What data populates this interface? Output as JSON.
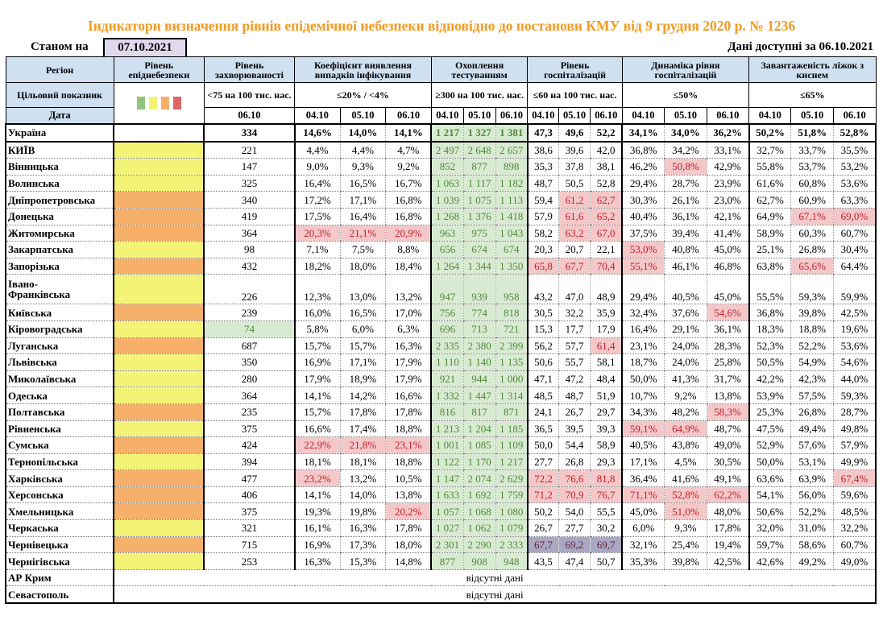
{
  "title": "Індикатори визначення рівнів епідемічної небезпеки відповідно до постанови КМУ від 9 грудня 2020 р. № 1236",
  "as_of_label": "Станом на",
  "as_of_date": "07.10.2021",
  "available_label": "Дані доступні за  06.10.2021",
  "headers": {
    "region": "Регіон",
    "level": "Рівень епіднебезпеки",
    "incidence": "Рівень захворюваності",
    "detection": "Коефіцієнт виявлення випадків інфікування",
    "testing": "Охоплення тестуванням",
    "hosp": "Рівень госпіталізацій",
    "hosp_dyn": "Динаміка рівня госпіталізацій",
    "oxygen": "Завантаженість ліжок з киснем"
  },
  "targets": {
    "label": "Цільовий показник",
    "incidence": "<75 на 100 тис. нас.",
    "detection": "≤20% / <4%",
    "testing": "≥300 на 100 тис. нас.",
    "hosp": "≤60 на 100 тис. нас.",
    "hosp_dyn": "≤50%",
    "oxygen": "≤65%"
  },
  "legend_colors": [
    "#93c47d",
    "#f3f376",
    "#f6b06a",
    "#e06666"
  ],
  "dates_label": "Дата",
  "incidence_date": "06.10",
  "dates": [
    "04.10",
    "05.10",
    "06.10"
  ],
  "no_data": "відсутні дані",
  "ukraine": {
    "name": "Україна",
    "incidence": "334",
    "detection": [
      "14,6%",
      "14,0%",
      "14,1%"
    ],
    "testing": [
      "1 217",
      "1 327",
      "1 381"
    ],
    "hosp": [
      "47,3",
      "49,6",
      "52,2"
    ],
    "hosp_dyn": [
      "34,1%",
      "34,0%",
      "36,2%"
    ],
    "oxygen": [
      "50,2%",
      "51,8%",
      "52,8%"
    ]
  },
  "rows": [
    {
      "name": "КИЇВ",
      "level": "yellow",
      "incidence": "221",
      "detection": [
        "4,4%",
        "4,4%",
        "4,7%"
      ],
      "testing": [
        "2 497",
        "2 648",
        "2 657"
      ],
      "hosp": [
        "38,6",
        "39,6",
        "42,0"
      ],
      "hosp_dyn": [
        "36,8%",
        "34,2%",
        "33,1%"
      ],
      "oxygen": [
        "32,7%",
        "33,7%",
        "35,5%"
      ]
    },
    {
      "name": "Вінницька",
      "level": "yellow",
      "incidence": "147",
      "detection": [
        "9,0%",
        "9,3%",
        "9,2%"
      ],
      "testing": [
        "852",
        "877",
        "898"
      ],
      "hosp": [
        "35,3",
        "37,8",
        "38,1"
      ],
      "hosp_dyn": [
        "46,2%",
        "50,8%",
        "42,9%"
      ],
      "oxygen": [
        "55,8%",
        "53,7%",
        "53,2%"
      ]
    },
    {
      "name": "Волинська",
      "level": "yellow",
      "incidence": "325",
      "detection": [
        "16,4%",
        "16,5%",
        "16,7%"
      ],
      "testing": [
        "1 063",
        "1 117",
        "1 182"
      ],
      "hosp": [
        "48,7",
        "50,5",
        "52,8"
      ],
      "hosp_dyn": [
        "29,4%",
        "28,7%",
        "23,9%"
      ],
      "oxygen": [
        "61,6%",
        "60,8%",
        "53,6%"
      ]
    },
    {
      "name": "Дніпропетровська",
      "level": "orange",
      "incidence": "340",
      "detection": [
        "17,2%",
        "17,1%",
        "16,8%"
      ],
      "testing": [
        "1 039",
        "1 075",
        "1 113"
      ],
      "hosp": [
        "59,4",
        "61,2",
        "62,7"
      ],
      "hosp_dyn": [
        "30,3%",
        "26,1%",
        "23,0%"
      ],
      "oxygen": [
        "62,7%",
        "60,9%",
        "63,3%"
      ]
    },
    {
      "name": "Донецька",
      "level": "orange",
      "incidence": "419",
      "detection": [
        "17,5%",
        "16,4%",
        "16,8%"
      ],
      "testing": [
        "1 268",
        "1 376",
        "1 418"
      ],
      "hosp": [
        "57,9",
        "61,6",
        "65,2"
      ],
      "hosp_dyn": [
        "40,4%",
        "36,1%",
        "42,1%"
      ],
      "oxygen": [
        "64,9%",
        "67,1%",
        "69,0%"
      ]
    },
    {
      "name": "Житомирська",
      "level": "orange",
      "incidence": "364",
      "detection": [
        "20,3%",
        "21,1%",
        "20,9%"
      ],
      "testing": [
        "963",
        "975",
        "1 043"
      ],
      "hosp": [
        "58,2",
        "63,2",
        "67,0"
      ],
      "hosp_dyn": [
        "37,5%",
        "39,4%",
        "41,4%"
      ],
      "oxygen": [
        "58,9%",
        "60,3%",
        "60,7%"
      ]
    },
    {
      "name": "Закарпатська",
      "level": "yellow",
      "incidence": "98",
      "detection": [
        "7,1%",
        "7,5%",
        "8,8%"
      ],
      "testing": [
        "656",
        "674",
        "674"
      ],
      "hosp": [
        "20,3",
        "20,7",
        "22,1"
      ],
      "hosp_dyn": [
        "53,0%",
        "40,8%",
        "45,0%"
      ],
      "oxygen": [
        "25,1%",
        "26,8%",
        "30,4%"
      ]
    },
    {
      "name": "Запорізька",
      "level": "orange",
      "incidence": "432",
      "detection": [
        "18,2%",
        "18,0%",
        "18,4%"
      ],
      "testing": [
        "1 264",
        "1 344",
        "1 350"
      ],
      "hosp": [
        "65,8",
        "67,7",
        "70,4"
      ],
      "hosp_dyn": [
        "55,1%",
        "46,1%",
        "46,8%"
      ],
      "oxygen": [
        "63,8%",
        "65,6%",
        "64,4%"
      ]
    },
    {
      "name": "Івано-Франківська",
      "level": "yellow",
      "incidence": "226",
      "detection": [
        "12,3%",
        "13,0%",
        "13,2%"
      ],
      "testing": [
        "947",
        "939",
        "958"
      ],
      "hosp": [
        "43,2",
        "47,0",
        "48,9"
      ],
      "hosp_dyn": [
        "29,4%",
        "40,5%",
        "45,0%"
      ],
      "oxygen": [
        "55,5%",
        "59,3%",
        "59,9%"
      ]
    },
    {
      "name": "Київська",
      "level": "orange",
      "incidence": "239",
      "detection": [
        "16,0%",
        "16,5%",
        "17,0%"
      ],
      "testing": [
        "756",
        "774",
        "818"
      ],
      "hosp": [
        "30,5",
        "32,2",
        "35,9"
      ],
      "hosp_dyn": [
        "32,4%",
        "37,6%",
        "54,6%"
      ],
      "oxygen": [
        "36,8%",
        "39,8%",
        "42,5%"
      ]
    },
    {
      "name": "Кіровоградська",
      "level": "yellow",
      "incidence": "74",
      "detection": [
        "5,8%",
        "6,0%",
        "6,3%"
      ],
      "testing": [
        "696",
        "713",
        "721"
      ],
      "hosp": [
        "15,3",
        "17,7",
        "17,9"
      ],
      "hosp_dyn": [
        "16,4%",
        "29,1%",
        "36,1%"
      ],
      "oxygen": [
        "18,3%",
        "18,8%",
        "19,6%"
      ]
    },
    {
      "name": "Луганська",
      "level": "orange",
      "incidence": "687",
      "detection": [
        "15,7%",
        "15,7%",
        "16,3%"
      ],
      "testing": [
        "2 335",
        "2 380",
        "2 399"
      ],
      "hosp": [
        "56,2",
        "57,7",
        "61,4"
      ],
      "hosp_dyn": [
        "23,1%",
        "24,0%",
        "28,3%"
      ],
      "oxygen": [
        "52,3%",
        "52,2%",
        "53,6%"
      ]
    },
    {
      "name": "Львівська",
      "level": "yellow",
      "incidence": "350",
      "detection": [
        "16,9%",
        "17,1%",
        "17,9%"
      ],
      "testing": [
        "1 110",
        "1 140",
        "1 135"
      ],
      "hosp": [
        "50,6",
        "55,7",
        "58,1"
      ],
      "hosp_dyn": [
        "18,7%",
        "24,0%",
        "25,8%"
      ],
      "oxygen": [
        "50,5%",
        "54,9%",
        "54,6%"
      ]
    },
    {
      "name": "Миколаївська",
      "level": "yellow",
      "incidence": "280",
      "detection": [
        "17,9%",
        "18,9%",
        "17,9%"
      ],
      "testing": [
        "921",
        "944",
        "1 000"
      ],
      "hosp": [
        "47,1",
        "47,2",
        "48,4"
      ],
      "hosp_dyn": [
        "50,0%",
        "41,3%",
        "31,7%"
      ],
      "oxygen": [
        "42,2%",
        "42,3%",
        "44,0%"
      ]
    },
    {
      "name": "Одеська",
      "level": "yellow",
      "incidence": "364",
      "detection": [
        "14,1%",
        "14,2%",
        "16,6%"
      ],
      "testing": [
        "1 332",
        "1 447",
        "1 314"
      ],
      "hosp": [
        "48,5",
        "48,7",
        "51,9"
      ],
      "hosp_dyn": [
        "10,7%",
        "9,2%",
        "13,8%"
      ],
      "oxygen": [
        "53,9%",
        "57,5%",
        "59,3%"
      ]
    },
    {
      "name": "Полтавська",
      "level": "orange",
      "incidence": "235",
      "detection": [
        "15,7%",
        "17,8%",
        "17,8%"
      ],
      "testing": [
        "816",
        "817",
        "871"
      ],
      "hosp": [
        "24,1",
        "26,7",
        "29,7"
      ],
      "hosp_dyn": [
        "34,3%",
        "48,2%",
        "58,3%"
      ],
      "oxygen": [
        "25,3%",
        "26,8%",
        "28,7%"
      ]
    },
    {
      "name": "Рівненська",
      "level": "yellow",
      "incidence": "375",
      "detection": [
        "16,6%",
        "17,4%",
        "18,8%"
      ],
      "testing": [
        "1 213",
        "1 204",
        "1 185"
      ],
      "hosp": [
        "36,5",
        "39,5",
        "39,3"
      ],
      "hosp_dyn": [
        "59,1%",
        "64,9%",
        "48,7%"
      ],
      "oxygen": [
        "47,5%",
        "49,4%",
        "49,8%"
      ]
    },
    {
      "name": "Сумська",
      "level": "orange",
      "incidence": "424",
      "detection": [
        "22,9%",
        "21,8%",
        "23,1%"
      ],
      "testing": [
        "1 001",
        "1 085",
        "1 109"
      ],
      "hosp": [
        "50,0",
        "54,4",
        "58,9"
      ],
      "hosp_dyn": [
        "40,5%",
        "43,8%",
        "49,0%"
      ],
      "oxygen": [
        "52,9%",
        "57,6%",
        "57,9%"
      ]
    },
    {
      "name": "Тернопільська",
      "level": "yellow",
      "incidence": "394",
      "detection": [
        "18,1%",
        "18,1%",
        "18,8%"
      ],
      "testing": [
        "1 122",
        "1 170",
        "1 217"
      ],
      "hosp": [
        "27,7",
        "26,8",
        "29,3"
      ],
      "hosp_dyn": [
        "17,1%",
        "4,5%",
        "30,5%"
      ],
      "oxygen": [
        "50,0%",
        "53,1%",
        "49,9%"
      ]
    },
    {
      "name": "Харківська",
      "level": "orange",
      "incidence": "477",
      "detection": [
        "23,2%",
        "13,2%",
        "10,5%"
      ],
      "testing": [
        "1 147",
        "2 074",
        "2 629"
      ],
      "hosp": [
        "72,2",
        "76,6",
        "81,8"
      ],
      "hosp_dyn": [
        "36,4%",
        "41,6%",
        "49,1%"
      ],
      "oxygen": [
        "63,6%",
        "63,9%",
        "67,4%"
      ]
    },
    {
      "name": "Херсонська",
      "level": "orange",
      "incidence": "406",
      "detection": [
        "14,1%",
        "14,0%",
        "13,8%"
      ],
      "testing": [
        "1 633",
        "1 692",
        "1 759"
      ],
      "hosp": [
        "71,2",
        "70,9",
        "76,7"
      ],
      "hosp_dyn": [
        "71,1%",
        "52,8%",
        "62,2%"
      ],
      "oxygen": [
        "54,1%",
        "56,0%",
        "59,6%"
      ]
    },
    {
      "name": "Хмельницька",
      "level": "orange",
      "incidence": "375",
      "detection": [
        "19,3%",
        "19,8%",
        "20,2%"
      ],
      "testing": [
        "1 057",
        "1 068",
        "1 080"
      ],
      "hosp": [
        "50,2",
        "54,0",
        "55,5"
      ],
      "hosp_dyn": [
        "45,0%",
        "51,0%",
        "48,0%"
      ],
      "oxygen": [
        "50,6%",
        "52,2%",
        "48,5%"
      ]
    },
    {
      "name": "Черкаська",
      "level": "yellow",
      "incidence": "321",
      "detection": [
        "16,1%",
        "16,3%",
        "17,8%"
      ],
      "testing": [
        "1 027",
        "1 062",
        "1 079"
      ],
      "hosp": [
        "26,7",
        "27,7",
        "30,2"
      ],
      "hosp_dyn": [
        "6,0%",
        "9,3%",
        "17,8%"
      ],
      "oxygen": [
        "32,0%",
        "31,0%",
        "32,2%"
      ]
    },
    {
      "name": "Чернівецька",
      "level": "orange",
      "incidence": "715",
      "detection": [
        "16,9%",
        "17,3%",
        "18,0%"
      ],
      "testing": [
        "2 301",
        "2 290",
        "2 333"
      ],
      "hosp": [
        "67,7",
        "69,2",
        "69,7"
      ],
      "hosp_dyn": [
        "32,1%",
        "25,4%",
        "19,4%"
      ],
      "oxygen": [
        "59,7%",
        "58,6%",
        "60,7%"
      ]
    },
    {
      "name": "Чернігівська",
      "level": "yellow",
      "incidence": "253",
      "detection": [
        "16,3%",
        "15,3%",
        "14,8%"
      ],
      "testing": [
        "877",
        "908",
        "948"
      ],
      "hosp": [
        "43,5",
        "47,4",
        "50,7"
      ],
      "hosp_dyn": [
        "35,3%",
        "39,8%",
        "42,5%"
      ],
      "oxygen": [
        "42,6%",
        "49,2%",
        "49,0%"
      ]
    }
  ],
  "no_data_rows": [
    "АР Крим",
    "Севастополь"
  ],
  "colors": {
    "title": "#f39a1e",
    "header_bg": "#cfe0f1",
    "testing_bg": "#d9ead3",
    "alert_bg": "#f4c7c9",
    "alert_text": "#c0202a",
    "level_yellow": "#f3f376",
    "level_orange": "#f6b06a"
  }
}
